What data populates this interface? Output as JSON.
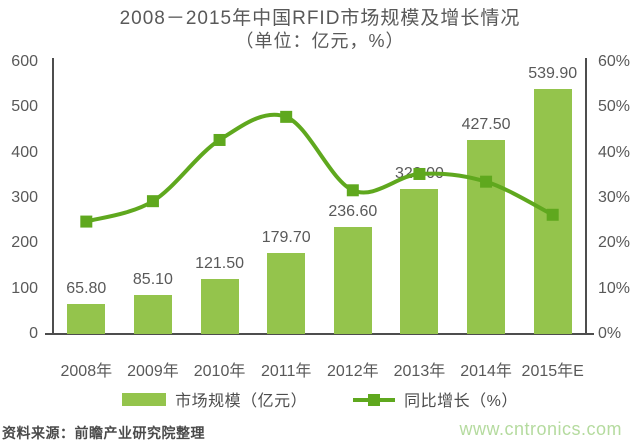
{
  "chart_data": {
    "type": "bar",
    "combo": "bar+line dual-axis",
    "title": "2008－2015年中国RFID市场规模及增长情况",
    "subtitle": "（单位：亿元，%）",
    "categories": [
      "2008年",
      "2009年",
      "2010年",
      "2011年",
      "2012年",
      "2013年",
      "2014年",
      "2015年E"
    ],
    "series": [
      {
        "name": "市场规模（亿元）",
        "type": "bar",
        "yaxis": "left",
        "color": "#94c44c",
        "values": [
          65.8,
          85.1,
          121.5,
          179.7,
          236.6,
          320.0,
          427.5,
          539.9
        ],
        "labels": [
          "65.80",
          "85.10",
          "121.50",
          "179.70",
          "236.60",
          "320.00",
          "427.50",
          "539.90"
        ]
      },
      {
        "name": "同比增长（%）",
        "type": "line",
        "yaxis": "right",
        "color": "#5fa81e",
        "values": [
          24.8,
          29.3,
          42.8,
          47.9,
          31.7,
          35.3,
          33.6,
          26.3
        ]
      }
    ],
    "left_axis": {
      "min": 0,
      "max": 600,
      "ticks": [
        "600",
        "500",
        "400",
        "300",
        "200",
        "100",
        "0"
      ]
    },
    "right_axis": {
      "min": 0,
      "max": 60,
      "ticks": [
        "60%",
        "50%",
        "40%",
        "30%",
        "20%",
        "10%",
        "0%"
      ]
    },
    "gridlines": false,
    "legend_position": "bottom"
  },
  "footer": {
    "source": "资料来源：前瞻产业研究院整理",
    "watermark": "www.cntronics.com"
  },
  "colors": {
    "bar": "#94c44c",
    "line": "#5fa81e",
    "axis": "#4d4d4d",
    "tick_text": "#595959",
    "value_label": "#595959",
    "title_text": "#595959",
    "legend_text": "#4d4d4d",
    "source_text": "#4a4a4a",
    "watermark": "#b5db9f",
    "background": "#ffffff"
  }
}
